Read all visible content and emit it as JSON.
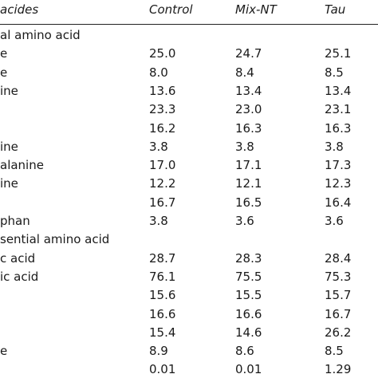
{
  "header": {
    "label": "acides",
    "control": "Control",
    "mix": "Mix-NT",
    "tau": "Tau"
  },
  "rows": [
    {
      "type": "section",
      "label": "al amino acid"
    },
    {
      "type": "data",
      "label": "e",
      "control": "25.0",
      "mix": "24.7",
      "tau": "25.1"
    },
    {
      "type": "data",
      "label": "e",
      "control": "8.0",
      "mix": "8.4",
      "tau": "8.5"
    },
    {
      "type": "data",
      "label": "ine",
      "control": "13.6",
      "mix": "13.4",
      "tau": "13.4"
    },
    {
      "type": "data",
      "label": "",
      "control": "23.3",
      "mix": "23.0",
      "tau": "23.1"
    },
    {
      "type": "data",
      "label": "",
      "control": "16.2",
      "mix": "16.3",
      "tau": "16.3"
    },
    {
      "type": "data",
      "label": "ine",
      "control": "3.8",
      "mix": "3.8",
      "tau": "3.8"
    },
    {
      "type": "data",
      "label": "alanine",
      "control": "17.0",
      "mix": "17.1",
      "tau": "17.3"
    },
    {
      "type": "data",
      "label": "ine",
      "control": "12.2",
      "mix": "12.1",
      "tau": "12.3"
    },
    {
      "type": "data",
      "label": "",
      "control": "16.7",
      "mix": "16.5",
      "tau": "16.4"
    },
    {
      "type": "data",
      "label": "phan",
      "control": "3.8",
      "mix": "3.6",
      "tau": "3.6"
    },
    {
      "type": "section",
      "label": "sential amino acid"
    },
    {
      "type": "data",
      "label": "c acid",
      "control": "28.7",
      "mix": "28.3",
      "tau": "28.4"
    },
    {
      "type": "data",
      "label": "ic acid",
      "control": "76.1",
      "mix": "75.5",
      "tau": "75.3"
    },
    {
      "type": "data",
      "label": "",
      "control": "15.6",
      "mix": "15.5",
      "tau": "15.7"
    },
    {
      "type": "data",
      "label": "",
      "control": "16.6",
      "mix": "16.6",
      "tau": "16.7"
    },
    {
      "type": "data",
      "label": "",
      "control": "15.4",
      "mix": "14.6",
      "tau": "26.2"
    },
    {
      "type": "data",
      "label": "e",
      "control": "8.9",
      "mix": "8.6",
      "tau": "8.5"
    },
    {
      "type": "data",
      "label": "",
      "control": "0.01",
      "mix": "0.01",
      "tau": "1.29"
    }
  ]
}
